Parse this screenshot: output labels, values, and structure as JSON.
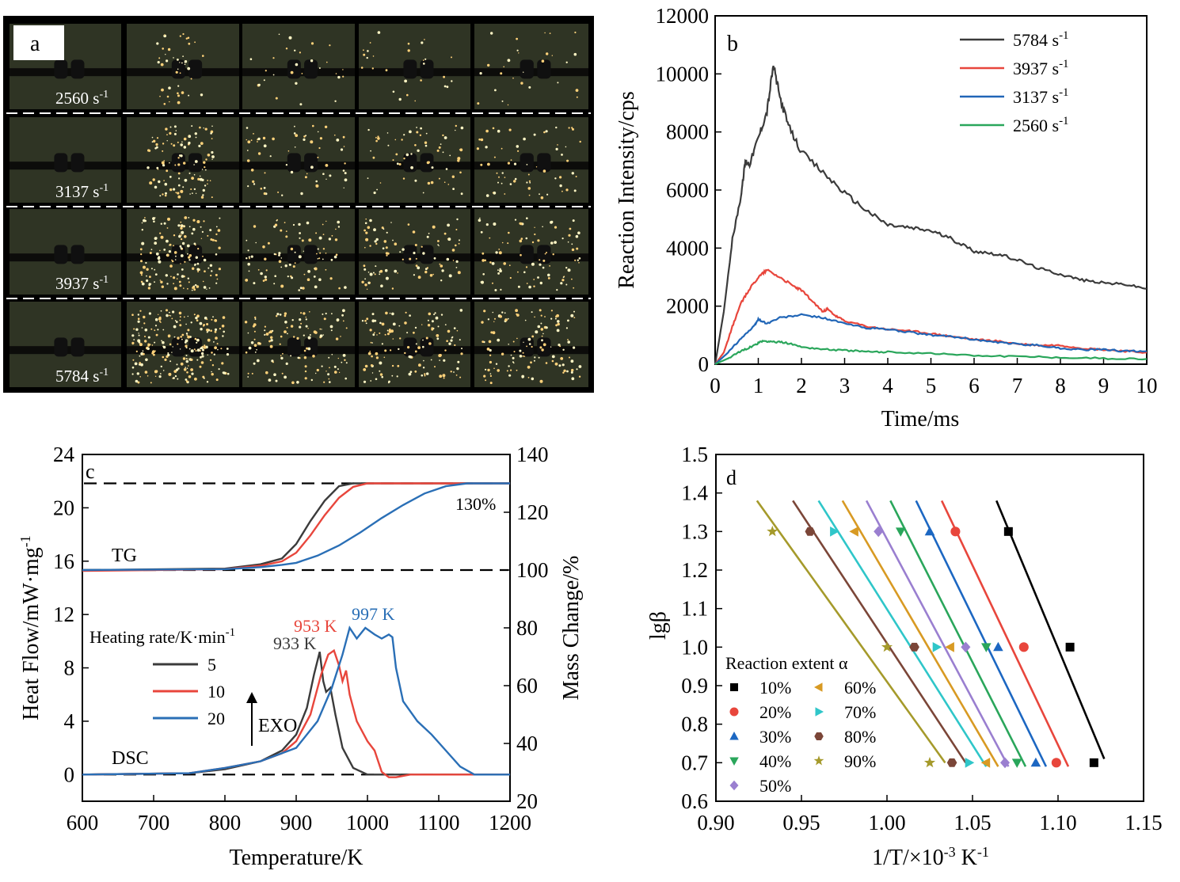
{
  "colors": {
    "s5784": "#3b3b3b",
    "s3937": "#e8463c",
    "s3137": "#2166b7",
    "s2560": "#2aa65b",
    "hr5": "#3b3b3b",
    "hr10": "#e8463c",
    "hr20": "#2a6fb6",
    "a10": "#000000",
    "a20": "#e8463c",
    "a30": "#1c67c2",
    "a40": "#2aa65b",
    "a50": "#9a7fd0",
    "a60": "#d89a23",
    "a70": "#2fc6c9",
    "a80": "#7b4638",
    "a90": "#a59a2b"
  },
  "panel_a": {
    "label": "a",
    "rows": [
      {
        "rate": "2560 s",
        "sup": "-1",
        "intensity": 0.15
      },
      {
        "rate": "3137 s",
        "sup": "-1",
        "intensity": 0.45
      },
      {
        "rate": "3937 s",
        "sup": "-1",
        "intensity": 0.7
      },
      {
        "rate": "5784 s",
        "sup": "-1",
        "intensity": 1.0
      }
    ]
  },
  "chart_data": [
    {
      "id": "b",
      "type": "line",
      "panel_label": "b",
      "xlabel": "Time/ms",
      "ylabel": "Reaction Intensity/cps",
      "xlim": [
        0,
        10
      ],
      "ylim": [
        0,
        12000
      ],
      "xticks": [
        "0",
        "1",
        "2",
        "3",
        "4",
        "5",
        "6",
        "7",
        "8",
        "9",
        "10"
      ],
      "yticks": [
        "0",
        "2000",
        "4000",
        "6000",
        "8000",
        "10000",
        "12000"
      ],
      "legend_position": "top-right",
      "series": [
        {
          "name": "5784 s",
          "sup": "-1",
          "color_key": "s5784",
          "x": [
            0,
            0.2,
            0.4,
            0.6,
            0.7,
            0.8,
            1.0,
            1.2,
            1.35,
            1.5,
            1.7,
            2.0,
            2.5,
            3.0,
            3.5,
            4.0,
            4.5,
            5.0,
            5.5,
            6.0,
            6.5,
            7.0,
            7.5,
            8.0,
            8.5,
            9.0,
            9.5,
            10
          ],
          "y": [
            0,
            1800,
            4300,
            5800,
            7000,
            6900,
            7800,
            8700,
            10300,
            9200,
            8200,
            7300,
            6600,
            5900,
            5300,
            4800,
            4700,
            4600,
            4300,
            3900,
            3800,
            3600,
            3300,
            3100,
            2900,
            2800,
            2750,
            2600
          ]
        },
        {
          "name": "3937 s",
          "sup": "-1",
          "color_key": "s3937",
          "x": [
            0,
            0.2,
            0.4,
            0.6,
            0.8,
            1.0,
            1.2,
            1.5,
            1.8,
            2.0,
            2.3,
            2.5,
            2.6,
            2.8,
            3.0,
            3.5,
            4.0,
            4.5,
            5.0,
            5.5,
            6.0,
            6.5,
            7.0,
            7.5,
            8.0,
            8.5,
            9.0,
            9.5,
            10
          ],
          "y": [
            0,
            400,
            1300,
            2100,
            2600,
            3000,
            3250,
            3000,
            2700,
            2550,
            2100,
            1800,
            1900,
            1650,
            1500,
            1300,
            1200,
            1150,
            1050,
            950,
            850,
            800,
            700,
            650,
            650,
            550,
            500,
            450,
            400
          ]
        },
        {
          "name": "3137 s",
          "sup": "-1",
          "color_key": "s3137",
          "x": [
            0,
            0.3,
            0.6,
            0.9,
            1.0,
            1.2,
            1.5,
            2.0,
            2.5,
            3.0,
            3.5,
            4.0,
            4.5,
            5.0,
            5.5,
            6.0,
            6.5,
            7.0,
            7.5,
            8.0,
            8.5,
            9.0,
            9.5,
            10
          ],
          "y": [
            0,
            400,
            900,
            1300,
            1550,
            1400,
            1600,
            1700,
            1600,
            1400,
            1250,
            1200,
            1100,
            1000,
            950,
            850,
            750,
            700,
            650,
            550,
            500,
            500,
            450,
            450
          ]
        },
        {
          "name": "2560 s",
          "sup": "-1",
          "color_key": "s2560",
          "x": [
            0,
            0.3,
            0.6,
            0.9,
            1.1,
            1.3,
            1.6,
            2.0,
            2.5,
            3.0,
            3.5,
            4.0,
            5.0,
            6.0,
            7.0,
            8.0,
            9.0,
            10
          ],
          "y": [
            0,
            200,
            450,
            650,
            800,
            780,
            750,
            600,
            520,
            480,
            430,
            420,
            380,
            300,
            270,
            230,
            200,
            180
          ]
        }
      ]
    },
    {
      "id": "c",
      "type": "line",
      "panel_label": "c",
      "xlabel": "Temperature/K",
      "ylabel": "Heat Flow/mW·mg",
      "ylabel_sup": "-1",
      "y2label": "Mass Change/%",
      "xlim": [
        600,
        1200
      ],
      "ylim": [
        -2,
        24
      ],
      "y2lim": [
        20,
        140
      ],
      "xticks": [
        "600",
        "700",
        "800",
        "900",
        "1000",
        "1100",
        "1200"
      ],
      "yticks": [
        "0",
        "4",
        "8",
        "12",
        "16",
        "20",
        "24"
      ],
      "y2ticks": [
        "20",
        "40",
        "60",
        "80",
        "100",
        "120",
        "140"
      ],
      "legend_title": "Heating rate/K·min",
      "legend_title_sup": "-1",
      "annotations": [
        "TG",
        "DSC",
        "130%",
        "EXO",
        "933 K",
        "953 K",
        "997 K"
      ],
      "tg_series": [
        {
          "name": "5",
          "color_key": "hr5",
          "x": [
            600,
            800,
            850,
            880,
            900,
            920,
            940,
            960,
            980,
            1000,
            1200
          ],
          "y2": [
            100,
            100.5,
            102,
            104,
            109,
            117,
            124,
            129,
            130,
            130,
            130
          ]
        },
        {
          "name": "10",
          "color_key": "hr10",
          "x": [
            600,
            800,
            850,
            880,
            900,
            920,
            940,
            960,
            980,
            1000,
            1020,
            1200
          ],
          "y2": [
            99.7,
            100.3,
            101.5,
            103,
            106,
            112,
            119,
            125,
            128.8,
            130,
            130,
            130
          ]
        },
        {
          "name": "20",
          "color_key": "hr20",
          "x": [
            600,
            800,
            850,
            880,
            900,
            930,
            960,
            990,
            1020,
            1050,
            1080,
            1110,
            1140,
            1200
          ],
          "y2": [
            100,
            100.3,
            101,
            101.8,
            102.5,
            105,
            108.5,
            113,
            118,
            122.5,
            126.5,
            129,
            130,
            130
          ]
        }
      ],
      "dsc_series": [
        {
          "name": "5",
          "color_key": "hr5",
          "x": [
            600,
            750,
            800,
            850,
            880,
            900,
            915,
            925,
            933,
            938,
            942,
            948,
            955,
            965,
            980,
            1000,
            1200
          ],
          "y": [
            0,
            0.1,
            0.4,
            1.0,
            1.8,
            3.0,
            5.0,
            7.5,
            9.2,
            7.0,
            6.2,
            6.5,
            4.5,
            2.0,
            0.5,
            0,
            0
          ]
        },
        {
          "name": "10",
          "color_key": "hr10",
          "x": [
            600,
            750,
            800,
            850,
            880,
            900,
            920,
            935,
            945,
            953,
            960,
            965,
            970,
            975,
            985,
            1000,
            1010,
            1020,
            1030,
            1040,
            1060,
            1100,
            1200
          ],
          "y": [
            0,
            0.1,
            0.5,
            1.0,
            1.6,
            2.5,
            4.5,
            7.5,
            9.0,
            9.3,
            8.2,
            7.0,
            7.8,
            6.0,
            4.0,
            2.5,
            1.8,
            0.2,
            -0.2,
            -0.2,
            0,
            0,
            0
          ]
        },
        {
          "name": "20",
          "color_key": "hr20",
          "x": [
            600,
            750,
            800,
            850,
            900,
            930,
            950,
            965,
            975,
            985,
            997,
            1010,
            1020,
            1030,
            1035,
            1040,
            1050,
            1070,
            1090,
            1110,
            1130,
            1150,
            1170,
            1200
          ],
          "y": [
            0,
            0.1,
            0.5,
            1.0,
            2.0,
            4.0,
            6.5,
            9.0,
            11.0,
            10.2,
            11.0,
            10.5,
            10.2,
            10.5,
            10.3,
            8.0,
            5.5,
            4.0,
            3.0,
            1.8,
            0.6,
            0,
            0,
            0
          ]
        }
      ]
    },
    {
      "id": "d",
      "type": "scatter",
      "panel_label": "d",
      "xlabel": "1/T/×10",
      "xlabel_sup": "-3",
      "xlabel_unit": " K",
      "xlabel_unit_sup": "-1",
      "ylabel": "lgβ",
      "xlim": [
        0.9,
        1.15
      ],
      "ylim": [
        0.6,
        1.5
      ],
      "xticks": [
        "0.90",
        "0.95",
        "1.00",
        "1.05",
        "1.10",
        "1.15"
      ],
      "yticks": [
        "0.6",
        "0.7",
        "0.8",
        "0.9",
        "1.0",
        "1.1",
        "1.2",
        "1.3",
        "1.4",
        "1.5"
      ],
      "legend_title": "Reaction extent α",
      "legend_position": "bottom-left",
      "y_levels": [
        0.7,
        1.0,
        1.3
      ],
      "series": [
        {
          "name": "10%",
          "marker": "square",
          "color_key": "a10",
          "x": [
            1.121,
            1.107,
            1.071
          ],
          "fit_top": [
            1.064,
            1.38
          ],
          "fit_bottom": [
            1.127,
            0.71
          ]
        },
        {
          "name": "20%",
          "marker": "circle",
          "color_key": "a20",
          "x": [
            1.099,
            1.08,
            1.04
          ],
          "fit_top": [
            1.032,
            1.38
          ],
          "fit_bottom": [
            1.106,
            0.69
          ]
        },
        {
          "name": "30%",
          "marker": "triangle-up",
          "color_key": "a30",
          "x": [
            1.087,
            1.065,
            1.025
          ],
          "fit_top": [
            1.017,
            1.38
          ],
          "fit_bottom": [
            1.093,
            0.69
          ]
        },
        {
          "name": "40%",
          "marker": "triangle-down",
          "color_key": "a40",
          "x": [
            1.076,
            1.058,
            1.008
          ],
          "fit_top": [
            1.002,
            1.38
          ],
          "fit_bottom": [
            1.081,
            0.69
          ]
        },
        {
          "name": "50%",
          "marker": "diamond",
          "color_key": "a50",
          "x": [
            1.069,
            1.046,
            0.995
          ],
          "fit_top": [
            0.988,
            1.38
          ],
          "fit_bottom": [
            1.071,
            0.69
          ]
        },
        {
          "name": "60%",
          "marker": "triangle-left",
          "color_key": "a60",
          "x": [
            1.058,
            1.037,
            0.981
          ],
          "fit_top": [
            0.974,
            1.38
          ],
          "fit_bottom": [
            1.065,
            0.69
          ]
        },
        {
          "name": "70%",
          "marker": "triangle-right",
          "color_key": "a70",
          "x": [
            1.048,
            1.029,
            0.969
          ],
          "fit_top": [
            0.96,
            1.38
          ],
          "fit_bottom": [
            1.058,
            0.69
          ]
        },
        {
          "name": "80%",
          "marker": "hexagon",
          "color_key": "a80",
          "x": [
            1.038,
            1.016,
            0.955
          ],
          "fit_top": [
            0.945,
            1.38
          ],
          "fit_bottom": [
            1.046,
            0.7
          ]
        },
        {
          "name": "90%",
          "marker": "star",
          "color_key": "a90",
          "x": [
            1.025,
            1.0,
            0.933
          ],
          "fit_top": [
            0.924,
            1.38
          ],
          "fit_bottom": [
            1.034,
            0.7
          ]
        }
      ]
    }
  ]
}
